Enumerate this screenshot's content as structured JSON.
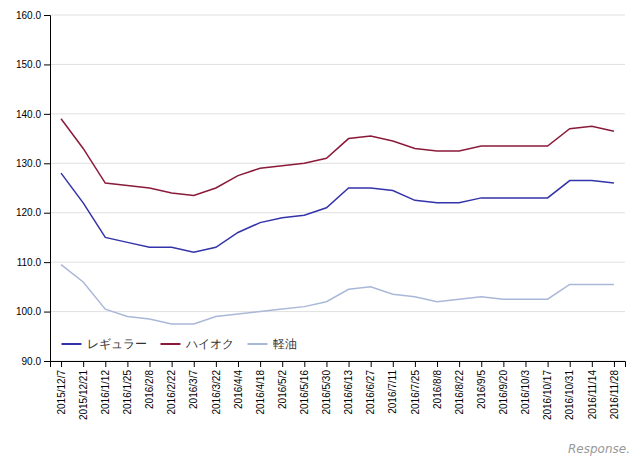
{
  "chart_data": {
    "type": "line",
    "categories": [
      "2015/12/7",
      "2015/12/21",
      "2016/1/12",
      "2016/1/25",
      "2016/2/8",
      "2016/2/22",
      "2016/3/7",
      "2016/3/22",
      "2016/4/4",
      "2016/4/18",
      "2016/5/2",
      "2016/5/16",
      "2016/5/30",
      "2016/6/13",
      "2016/6/27",
      "2016/7/11",
      "2016/7/25",
      "2016/8/8",
      "2016/8/22",
      "2016/9/5",
      "2016/9/20",
      "2016/10/3",
      "2016/10/17",
      "2016/10/31",
      "2016/11/14",
      "2016/11/28"
    ],
    "series": [
      {
        "name": "レギュラー",
        "color": "#3333aa",
        "values": [
          128.0,
          122.0,
          115.0,
          114.0,
          113.0,
          113.0,
          112.0,
          113.0,
          116.0,
          118.0,
          119.0,
          119.5,
          121.0,
          125.0,
          125.0,
          124.5,
          122.5,
          122.0,
          122.0,
          123.0,
          123.0,
          123.0,
          123.0,
          126.5,
          126.5,
          126.0
        ]
      },
      {
        "name": "ハイオク",
        "color": "#8b1a3a",
        "values": [
          139.0,
          133.0,
          126.0,
          125.5,
          125.0,
          124.0,
          123.5,
          125.0,
          127.5,
          129.0,
          129.5,
          130.0,
          131.0,
          135.0,
          135.5,
          134.5,
          133.0,
          132.5,
          132.5,
          133.5,
          133.5,
          133.5,
          133.5,
          137.0,
          137.5,
          136.5
        ]
      },
      {
        "name": "軽油",
        "color": "#aab8d8",
        "values": [
          109.5,
          106.0,
          100.5,
          99.0,
          98.5,
          97.5,
          97.5,
          99.0,
          99.5,
          100.0,
          100.5,
          101.0,
          102.0,
          104.5,
          105.0,
          103.5,
          103.0,
          102.0,
          102.5,
          103.0,
          102.5,
          102.5,
          102.5,
          105.5,
          105.5,
          105.5
        ]
      }
    ],
    "ylim": [
      90.0,
      160.0
    ],
    "yticks": [
      {
        "value": 90.0,
        "label": "90.0"
      },
      {
        "value": 100.0,
        "label": "100.0"
      },
      {
        "value": 110.0,
        "label": "110.0"
      },
      {
        "value": 120.0,
        "label": "120.0"
      },
      {
        "value": 130.0,
        "label": "130.0"
      },
      {
        "value": 140.0,
        "label": "140.0"
      },
      {
        "value": 150.0,
        "label": "150.0"
      },
      {
        "value": 160.0,
        "label": "160.0"
      }
    ],
    "grid": true,
    "legend": "lower left",
    "annotation": "Response."
  }
}
